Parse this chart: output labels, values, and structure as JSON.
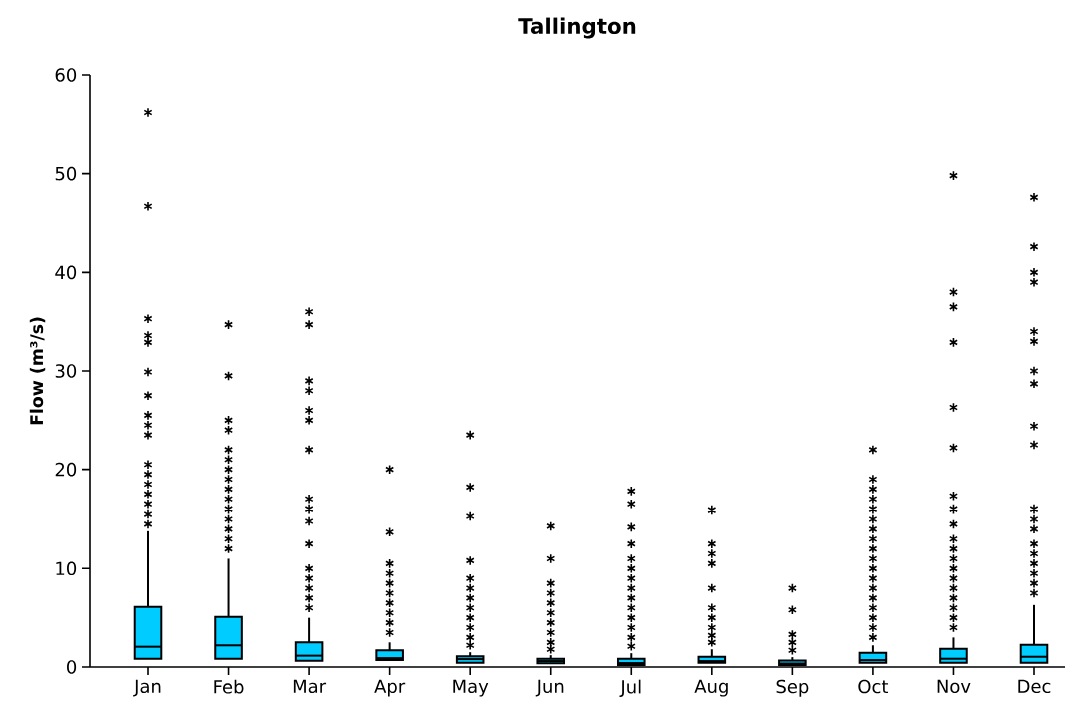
{
  "chart_data": {
    "type": "box",
    "title": "Tallington",
    "ylabel": "**Flow (m³/s)**",
    "color": "#00ccff",
    "categories": [
      "Jan",
      "Feb",
      "Mar",
      "Apr",
      "May",
      "Jun",
      "Jul",
      "Aug",
      "Sep",
      "Oct",
      "Nov",
      "Dec"
    ],
    "ylim": [
      0,
      60
    ],
    "yticks": [
      0,
      10,
      20,
      30,
      40,
      50,
      60
    ],
    "grid": false,
    "boxes": [
      {
        "low": 0.84,
        "q1": 0.84,
        "median": 2.06,
        "q3": 6.1,
        "high": 13.8,
        "outliers": [
          56.2,
          46.7,
          35.3,
          33.6,
          32.9,
          29.9,
          27.5,
          25.5,
          24.5,
          23.5,
          20.5,
          19.5,
          18.5,
          17.5,
          16.5,
          15.5,
          14.5
        ]
      },
      {
        "low": 0.84,
        "q1": 0.84,
        "median": 2.2,
        "q3": 5.1,
        "high": 11,
        "outliers": [
          34.7,
          29.5,
          25,
          24,
          22,
          21,
          20,
          19,
          18,
          17,
          16,
          15,
          14,
          13,
          12
        ]
      },
      {
        "low": 0.64,
        "q1": 0.64,
        "median": 1.15,
        "q3": 2.5,
        "high": 5,
        "outliers": [
          36,
          34.7,
          29,
          28,
          26,
          25,
          22,
          17,
          16,
          14.8,
          12.5,
          10,
          9,
          8,
          7,
          6
        ]
      },
      {
        "low": 0.7,
        "q1": 0.7,
        "median": 0.9,
        "q3": 1.7,
        "high": 2.5,
        "outliers": [
          20,
          13.7,
          10.5,
          9.5,
          8.5,
          7.5,
          6.5,
          5.5,
          4.5,
          3.5
        ]
      },
      {
        "low": 0.44,
        "q1": 0.44,
        "median": 0.8,
        "q3": 1.08,
        "high": 1.5,
        "outliers": [
          23.5,
          18.2,
          15.3,
          10.8,
          9,
          8,
          7,
          6,
          5,
          4,
          3,
          2.2
        ]
      },
      {
        "low": 0.37,
        "q1": 0.37,
        "median": 0.6,
        "q3": 0.84,
        "high": 1.2,
        "outliers": [
          14.3,
          11,
          8.5,
          7.5,
          6.5,
          5.5,
          4.5,
          3.5,
          2.5,
          1.8
        ]
      },
      {
        "low": 0.2,
        "q1": 0.2,
        "median": 0.4,
        "q3": 0.84,
        "high": 1.4,
        "outliers": [
          17.8,
          16.5,
          14.2,
          12.5,
          11,
          10,
          9,
          8,
          7,
          6,
          5,
          4,
          3,
          2.1
        ]
      },
      {
        "low": 0.44,
        "q1": 0.44,
        "median": 0.6,
        "q3": 1.04,
        "high": 1.8,
        "outliers": [
          15.9,
          12.5,
          11.5,
          10.5,
          8,
          6,
          5,
          4,
          3.2,
          2.5
        ]
      },
      {
        "low": 0.2,
        "q1": 0.2,
        "median": 0.35,
        "q3": 0.66,
        "high": 1.0,
        "outliers": [
          8,
          5.8,
          3.3,
          2.5,
          1.7
        ]
      },
      {
        "low": 0.44,
        "q1": 0.44,
        "median": 0.7,
        "q3": 1.45,
        "high": 2.2,
        "outliers": [
          22,
          19,
          18,
          17,
          16,
          15,
          14,
          13,
          12,
          11,
          10,
          9,
          8,
          7,
          6,
          5,
          4,
          3
        ]
      },
      {
        "low": 0.44,
        "q1": 0.44,
        "median": 0.84,
        "q3": 1.85,
        "high": 3,
        "outliers": [
          49.8,
          38,
          36.5,
          32.9,
          26.3,
          22.2,
          17.3,
          16,
          14.5,
          13,
          12,
          11,
          10,
          9,
          8,
          7,
          6,
          5,
          4
        ]
      },
      {
        "low": 0.44,
        "q1": 0.44,
        "median": 1.04,
        "q3": 2.26,
        "high": 6.3,
        "outliers": [
          47.6,
          42.6,
          40,
          39,
          34,
          33,
          30,
          28.7,
          24.4,
          22.5,
          16,
          15,
          14,
          12.5,
          11.5,
          10.5,
          9.5,
          8.5,
          7.5
        ]
      }
    ]
  }
}
